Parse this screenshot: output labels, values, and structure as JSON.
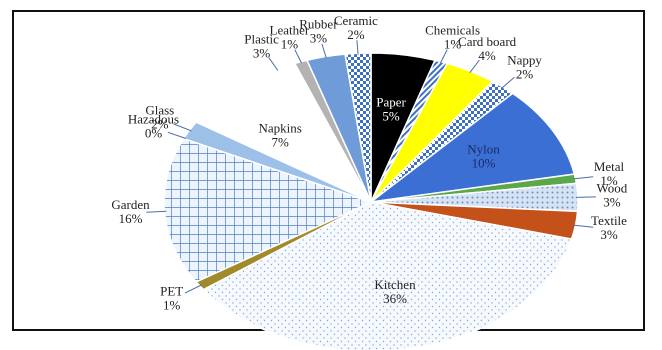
{
  "chart_data": {
    "type": "pie",
    "title": "",
    "slices": [
      {
        "label": "Paper",
        "value": 5,
        "display": "5%",
        "color": "#000000",
        "pattern": "solid",
        "text_color": "#ffffff",
        "label_mode": "inside"
      },
      {
        "label": "Chemicals",
        "value": 1,
        "display": "1%",
        "color": "#c8d8ee",
        "pattern": "hatch",
        "text_color": "#222222",
        "label_mode": "outside"
      },
      {
        "label": "Card board",
        "value": 4,
        "display": "4%",
        "color": "#ffff00",
        "pattern": "solid",
        "text_color": "#222222",
        "label_mode": "outside"
      },
      {
        "label": "Nappy",
        "value": 2,
        "display": "2%",
        "color": "#ffffff",
        "pattern": "bluechecker",
        "text_color": "#222222",
        "label_mode": "outside"
      },
      {
        "label": "Nylon",
        "value": 10,
        "display": "10%",
        "color": "#3b6fd4",
        "pattern": "solid",
        "text_color": "#1b2a66",
        "label_mode": "inside"
      },
      {
        "label": "Metal",
        "value": 1,
        "display": "1%",
        "color": "#5aa84a",
        "pattern": "solid",
        "text_color": "#222222",
        "label_mode": "outside"
      },
      {
        "label": "Wood",
        "value": 3,
        "display": "3%",
        "color": "#d5e3f3",
        "pattern": "dots",
        "text_color": "#222222",
        "label_mode": "outside"
      },
      {
        "label": "Textile",
        "value": 3,
        "display": "3%",
        "color": "#c4501a",
        "pattern": "solid",
        "text_color": "#222222",
        "label_mode": "outside"
      },
      {
        "label": "Kitchen",
        "value": 36,
        "display": "36%",
        "color": "#f4f8fc",
        "pattern": "finedots",
        "text_color": "#222222",
        "label_mode": "inside"
      },
      {
        "label": "PET",
        "value": 1,
        "display": "1%",
        "color": "#a08a2a",
        "pattern": "solid",
        "text_color": "#222222",
        "label_mode": "outside"
      },
      {
        "label": "Garden",
        "value": 16,
        "display": "16%",
        "color": "#eaf2fb",
        "pattern": "grid",
        "text_color": "#222222",
        "label_mode": "outside"
      },
      {
        "label": "Hazadous",
        "value": 0,
        "display": "0%",
        "color": "#ffffff",
        "pattern": "solid",
        "text_color": "#222222",
        "label_mode": "outside"
      },
      {
        "label": "Glass",
        "value": 2,
        "display": "2%",
        "color": "#9cc0e8",
        "pattern": "solid",
        "text_color": "#222222",
        "label_mode": "outside"
      },
      {
        "label": "Napkins",
        "value": 7,
        "display": "7%",
        "color": "#ffffff",
        "pattern": "solid",
        "text_color": "#222222",
        "label_mode": "inside"
      },
      {
        "label": "Plastic",
        "value": 3,
        "display": "3%",
        "color": "#ffffff",
        "pattern": "solid",
        "text_color": "#222222",
        "label_mode": "outside"
      },
      {
        "label": "Leather",
        "value": 1,
        "display": "1%",
        "color": "#b3b3b3",
        "pattern": "solid",
        "text_color": "#222222",
        "label_mode": "outside"
      },
      {
        "label": "Rubber",
        "value": 3,
        "display": "3%",
        "color": "#6f9bd8",
        "pattern": "solid",
        "text_color": "#222222",
        "label_mode": "outside"
      },
      {
        "label": "Ceramic",
        "value": 2,
        "display": "2%",
        "color": "#ffffff",
        "pattern": "bluechecker",
        "text_color": "#222222",
        "label_mode": "outside"
      }
    ],
    "legend": "none"
  }
}
